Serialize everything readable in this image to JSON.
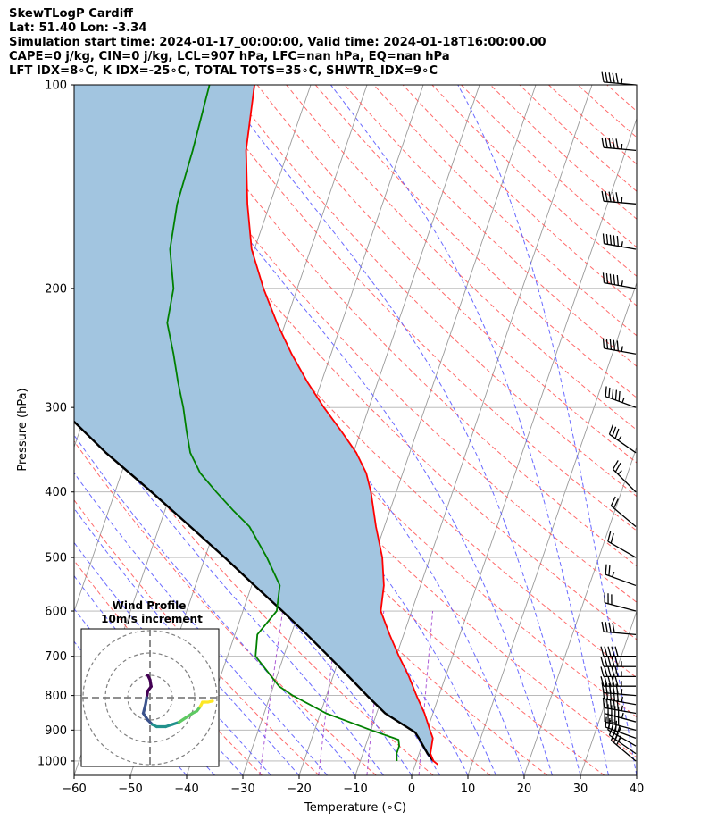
{
  "header": {
    "line1": "SkewTLogP Cardiff",
    "line2": "Lat: 51.40   Lon: -3.34",
    "line3": "Simulation start time: 2024-01-17_00:00:00, Valid time: 2024-01-18T16:00:00.00",
    "line4": "CAPE=0 j/kg, CIN=0 j/kg, LCL=907 hPa, LFC=nan hPa, EQ=nan hPa",
    "line5": "LFT IDX=8∘C, K IDX=-25∘C, TOTAL TOTS=35∘C, SHWTR_IDX=9∘C"
  },
  "chart_data": {
    "type": "skewt",
    "xlabel": "Temperature (∘C)",
    "ylabel": "Pressure (hPa)",
    "xlim": [
      -60,
      40
    ],
    "ylim": [
      1050,
      100
    ],
    "x_ticks": [
      "−60",
      "−50",
      "−40",
      "−30",
      "−20",
      "−10",
      "0",
      "10",
      "20",
      "30",
      "40"
    ],
    "x_tick_values": [
      -60,
      -50,
      -40,
      -30,
      -20,
      -10,
      0,
      10,
      20,
      30,
      40
    ],
    "y_ticks": [
      "100",
      "200",
      "300",
      "400",
      "500",
      "600",
      "700",
      "800",
      "900",
      "1000"
    ],
    "y_tick_values": [
      100,
      200,
      300,
      400,
      500,
      600,
      700,
      800,
      900,
      1000
    ],
    "temperature_profile": {
      "color": "#ff0000",
      "points": [
        [
          1012,
          4
        ],
        [
          1000,
          3
        ],
        [
          975,
          2
        ],
        [
          925,
          1.5
        ],
        [
          900,
          0.5
        ],
        [
          850,
          -1.5
        ],
        [
          800,
          -4
        ],
        [
          750,
          -6.5
        ],
        [
          700,
          -9.5
        ],
        [
          650,
          -12.5
        ],
        [
          600,
          -15.5
        ],
        [
          550,
          -16.5
        ],
        [
          500,
          -18.5
        ],
        [
          450,
          -21.5
        ],
        [
          400,
          -24.5
        ],
        [
          375,
          -26.5
        ],
        [
          350,
          -29.5
        ],
        [
          325,
          -33.5
        ],
        [
          300,
          -38
        ],
        [
          275,
          -42.5
        ],
        [
          250,
          -47
        ],
        [
          225,
          -51.5
        ],
        [
          200,
          -56
        ],
        [
          175,
          -60.5
        ],
        [
          150,
          -64
        ],
        [
          125,
          -67.5
        ],
        [
          100,
          -70
        ]
      ]
    },
    "dewpoint_profile": {
      "color": "#008000",
      "points": [
        [
          1000,
          -3.5
        ],
        [
          975,
          -4
        ],
        [
          950,
          -4
        ],
        [
          930,
          -4.5
        ],
        [
          900,
          -10
        ],
        [
          850,
          -19
        ],
        [
          800,
          -26
        ],
        [
          775,
          -29
        ],
        [
          700,
          -35
        ],
        [
          650,
          -36
        ],
        [
          600,
          -34
        ],
        [
          550,
          -35
        ],
        [
          500,
          -39
        ],
        [
          450,
          -44
        ],
        [
          425,
          -48
        ],
        [
          400,
          -52
        ],
        [
          375,
          -56
        ],
        [
          350,
          -59
        ],
        [
          325,
          -61
        ],
        [
          300,
          -63
        ],
        [
          275,
          -65.5
        ],
        [
          250,
          -68
        ],
        [
          225,
          -71
        ],
        [
          200,
          -72
        ],
        [
          175,
          -75
        ],
        [
          150,
          -76.5
        ],
        [
          125,
          -77
        ],
        [
          100,
          -78
        ]
      ]
    },
    "parcel_profile": {
      "color": "#000000",
      "points": [
        [
          1000,
          3
        ],
        [
          975,
          1.5
        ],
        [
          925,
          -1
        ],
        [
          907,
          -2
        ],
        [
          850,
          -8.5
        ],
        [
          800,
          -12.8
        ],
        [
          750,
          -17.2
        ],
        [
          700,
          -22
        ],
        [
          650,
          -27.2
        ],
        [
          600,
          -33
        ],
        [
          550,
          -39.5
        ],
        [
          500,
          -46.5
        ],
        [
          450,
          -54.5
        ],
        [
          400,
          -63.5
        ],
        [
          350,
          -74
        ],
        [
          300,
          -85
        ],
        [
          250,
          -97.5
        ],
        [
          200,
          -111.5
        ],
        [
          150,
          -127
        ],
        [
          100,
          -145.5
        ]
      ]
    },
    "cape_cin_shading": {
      "color": "#a2c5e0",
      "between": "parcel_profile and temperature_profile"
    },
    "reference_lines": {
      "isotherms": "gray solid",
      "dry_adiabats": "red dashed",
      "moist_adiabats": "blue dashed",
      "mixing_ratio": "purple dashed"
    },
    "wind_barbs": {
      "color": "#000000",
      "pressures": [
        1000,
        975,
        950,
        925,
        900,
        875,
        850,
        825,
        800,
        775,
        750,
        725,
        700,
        650,
        600,
        550,
        500,
        450,
        400,
        350,
        300,
        250,
        200,
        175,
        150,
        125,
        100
      ],
      "direction_deg": [
        310,
        305,
        300,
        290,
        285,
        285,
        280,
        280,
        275,
        270,
        270,
        270,
        270,
        275,
        285,
        290,
        300,
        310,
        315,
        305,
        290,
        280,
        280,
        280,
        275,
        275,
        275
      ],
      "speed_kt": [
        30,
        35,
        40,
        45,
        50,
        55,
        60,
        65,
        65,
        60,
        60,
        55,
        50,
        40,
        30,
        25,
        20,
        20,
        25,
        35,
        60,
        75,
        80,
        80,
        75,
        70,
        70
      ]
    }
  },
  "wind_profile_inset": {
    "title": "Wind Profile",
    "subtitle": "10m/s increment",
    "ring_spacing_ms": 10,
    "hodograph_points_ms": [
      [
        -1,
        10
      ],
      [
        0,
        8
      ],
      [
        0.5,
        5
      ],
      [
        -1,
        3
      ],
      [
        -1.5,
        0
      ],
      [
        -2,
        -3
      ],
      [
        -3,
        -7
      ],
      [
        -1,
        -10
      ],
      [
        1,
        -12
      ],
      [
        3,
        -13
      ],
      [
        7,
        -13
      ],
      [
        10,
        -12
      ],
      [
        13,
        -11
      ],
      [
        16,
        -9
      ],
      [
        19,
        -7
      ],
      [
        21,
        -6
      ],
      [
        22.5,
        -4
      ],
      [
        23.5,
        -2
      ],
      [
        24.5,
        -2
      ],
      [
        26,
        -2
      ],
      [
        28,
        -1.5
      ]
    ],
    "colormap": [
      "#440154",
      "#3b528b",
      "#21918c",
      "#5ec962",
      "#fde725"
    ]
  }
}
